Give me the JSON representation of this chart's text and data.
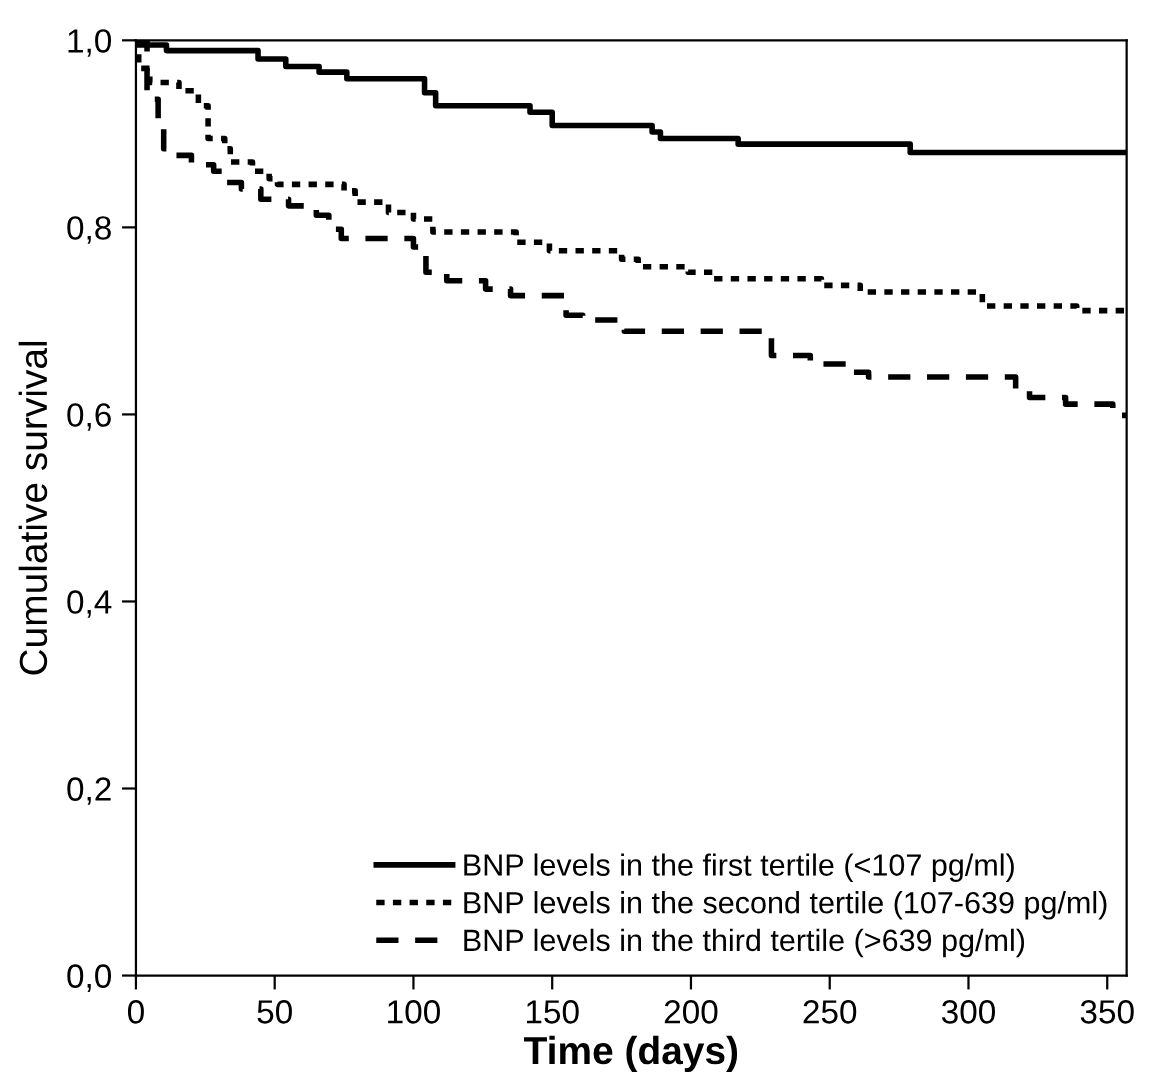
{
  "chart_data": {
    "type": "step",
    "xlabel": "Time (days)",
    "ylabel": "Cumulative survival",
    "xlim": [
      0,
      357
    ],
    "ylim": [
      0,
      1.0
    ],
    "xticks": [
      0,
      50,
      100,
      150,
      200,
      250,
      300,
      350
    ],
    "yticks": [
      {
        "value": 0,
        "label": "0,0"
      },
      {
        "value": 0.2,
        "label": "0,2"
      },
      {
        "value": 0.4,
        "label": "0,4"
      },
      {
        "value": 0.6,
        "label": "0,6"
      },
      {
        "value": 0.8,
        "label": "0,8"
      },
      {
        "value": 1.0,
        "label": "1,0"
      }
    ],
    "grid": false,
    "legend": "bottom right",
    "series": [
      {
        "name": "BNP levels in the first tertile (<107 pg/ml)",
        "color": "#000000",
        "line_style": "solid",
        "x": [
          0,
          11,
          44,
          54,
          66,
          76,
          104,
          108,
          142,
          150,
          186,
          189,
          217,
          279,
          357
        ],
        "values": [
          0.995,
          0.989,
          0.98,
          0.972,
          0.966,
          0.959,
          0.944,
          0.93,
          0.923,
          0.909,
          0.902,
          0.895,
          0.889,
          0.88,
          0.88
        ]
      },
      {
        "name": "BNP levels in the second tertile (107-639 pg/ml)",
        "color": "#000000",
        "line_style": "dotted",
        "x": [
          0,
          1,
          5,
          15.5,
          22.5,
          26,
          32,
          34,
          42,
          48,
          51,
          75,
          79,
          91,
          100,
          107,
          137,
          149,
          175,
          181,
          199,
          208,
          247,
          261,
          305,
          339,
          357
        ],
        "values": [
          1.0,
          0.97,
          0.955,
          0.946,
          0.93,
          0.895,
          0.884,
          0.87,
          0.86,
          0.852,
          0.846,
          0.839,
          0.827,
          0.816,
          0.809,
          0.795,
          0.784,
          0.775,
          0.766,
          0.758,
          0.752,
          0.745,
          0.738,
          0.731,
          0.716,
          0.711,
          0.711
        ]
      },
      {
        "name": "BNP levels in the third tertile (>639 pg/ml)",
        "color": "#000000",
        "line_style": "dashed",
        "x": [
          0,
          4,
          8,
          10,
          14,
          20,
          28,
          31,
          38,
          45,
          55,
          65,
          69.5,
          74,
          100,
          104.5,
          112,
          126,
          135,
          155,
          161,
          176,
          229,
          243,
          257,
          264,
          317,
          322,
          335,
          352,
          357
        ],
        "values": [
          1.0,
          0.937,
          0.909,
          0.884,
          0.877,
          0.867,
          0.86,
          0.848,
          0.841,
          0.83,
          0.823,
          0.813,
          0.798,
          0.788,
          0.779,
          0.752,
          0.743,
          0.734,
          0.727,
          0.706,
          0.701,
          0.689,
          0.663,
          0.654,
          0.645,
          0.64,
          0.627,
          0.618,
          0.611,
          0.599,
          0.599
        ]
      }
    ]
  }
}
